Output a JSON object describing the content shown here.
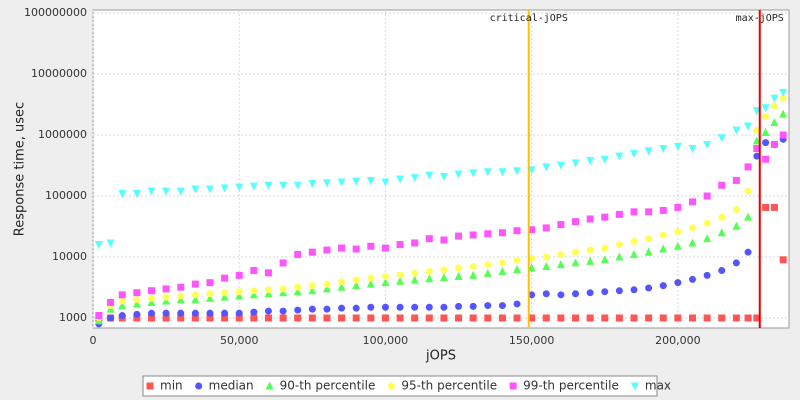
{
  "chart_data": {
    "type": "scatter",
    "log_y": true,
    "grid": true,
    "legend": "bottom",
    "xlabel": "jOPS",
    "ylabel": "Response time, usec",
    "xlim": [
      0,
      238000
    ],
    "ylim": [
      686,
      112000000
    ],
    "xticks": [
      0,
      {
        "value": 50000,
        "label": "50,000"
      },
      {
        "value": 100000,
        "label": "100,000"
      },
      {
        "value": 150000,
        "label": "150,000"
      },
      {
        "value": 200000,
        "label": "200,000"
      }
    ],
    "yticks": [
      1000,
      10000,
      100000,
      1000000,
      10000000,
      100000000
    ],
    "markers": [
      {
        "label": "critical-jOPS",
        "x": 149000,
        "color": "#ffc000"
      },
      {
        "label": "max-jOPS",
        "x": 228000,
        "color": "#e00000"
      }
    ],
    "x": [
      2000,
      6000,
      10000,
      15000,
      20000,
      25000,
      30000,
      35000,
      40000,
      45000,
      50000,
      55000,
      60000,
      65000,
      70000,
      75000,
      80000,
      85000,
      90000,
      95000,
      100000,
      105000,
      110000,
      115000,
      120000,
      125000,
      130000,
      135000,
      140000,
      145000,
      150000,
      155000,
      160000,
      165000,
      170000,
      175000,
      180000,
      185000,
      190000,
      195000,
      200000,
      205000,
      210000,
      215000,
      220000,
      224000,
      227000,
      230000,
      233000,
      236000
    ],
    "series": [
      {
        "name": "min",
        "color": "#ff5555",
        "marker": "square",
        "values": [
          1000,
          1000,
          1000,
          1000,
          1000,
          1000,
          1000,
          1000,
          1000,
          1000,
          1000,
          1000,
          1000,
          1000,
          1000,
          1000,
          1000,
          1000,
          1000,
          1000,
          1000,
          1000,
          1000,
          1000,
          1000,
          1000,
          1000,
          1000,
          1000,
          1000,
          1000,
          1000,
          1000,
          1000,
          1000,
          1000,
          1000,
          1000,
          1000,
          1000,
          1000,
          1000,
          1000,
          1000,
          1000,
          1000,
          1000,
          65000,
          65000,
          9000
        ]
      },
      {
        "name": "median",
        "color": "#5555ff",
        "marker": "circle",
        "values": [
          800,
          1000,
          1100,
          1150,
          1200,
          1200,
          1200,
          1200,
          1200,
          1200,
          1200,
          1250,
          1300,
          1300,
          1350,
          1400,
          1400,
          1450,
          1450,
          1500,
          1500,
          1500,
          1500,
          1500,
          1500,
          1550,
          1550,
          1600,
          1600,
          1700,
          2400,
          2500,
          2400,
          2500,
          2600,
          2700,
          2800,
          2900,
          3100,
          3400,
          3800,
          4300,
          5000,
          6000,
          8000,
          12000,
          450000,
          750000,
          700000,
          850000
        ]
      },
      {
        "name": "90-th percentile",
        "color": "#55ff55",
        "marker": "triangle-up",
        "values": [
          900,
          1400,
          1600,
          1700,
          1800,
          1900,
          2000,
          2000,
          2100,
          2200,
          2300,
          2400,
          2500,
          2600,
          2700,
          2800,
          3000,
          3200,
          3400,
          3600,
          3800,
          4000,
          4200,
          4400,
          4600,
          4800,
          5000,
          5400,
          5800,
          6200,
          6600,
          7000,
          7500,
          8000,
          8500,
          9000,
          10000,
          11000,
          12000,
          13500,
          15000,
          17000,
          20000,
          25000,
          32000,
          45000,
          800000,
          1100000,
          1600000,
          2200000
        ]
      },
      {
        "name": "95-th percentile",
        "color": "#ffff55",
        "marker": "circle",
        "values": [
          1000,
          1600,
          1900,
          2000,
          2100,
          2200,
          2300,
          2400,
          2500,
          2600,
          2700,
          2800,
          2900,
          3000,
          3200,
          3400,
          3600,
          3900,
          4200,
          4500,
          4800,
          5100,
          5400,
          5800,
          6200,
          6600,
          7000,
          7500,
          8000,
          8800,
          9500,
          10000,
          11000,
          12000,
          13000,
          14000,
          16000,
          18000,
          20000,
          23000,
          26000,
          30000,
          36000,
          45000,
          60000,
          120000,
          1200000,
          2000000,
          3000000,
          4000000
        ]
      },
      {
        "name": "99-th percentile",
        "color": "#ff55ff",
        "marker": "square",
        "values": [
          1100,
          1800,
          2400,
          2600,
          2800,
          3000,
          3200,
          3600,
          3800,
          4500,
          5000,
          6000,
          5500,
          8000,
          11000,
          12000,
          13000,
          14000,
          13500,
          15000,
          14000,
          16000,
          17000,
          20000,
          19000,
          22000,
          23000,
          24000,
          25000,
          27000,
          28000,
          30000,
          34000,
          38000,
          42000,
          45000,
          50000,
          55000,
          55000,
          58000,
          65000,
          80000,
          100000,
          150000,
          180000,
          300000,
          600000,
          400000,
          700000,
          1000000
        ]
      },
      {
        "name": "max",
        "color": "#55ffff",
        "marker": "triangle-down",
        "values": [
          16000,
          17000,
          110000,
          110000,
          120000,
          120000,
          120000,
          130000,
          130000,
          135000,
          140000,
          145000,
          150000,
          150000,
          150000,
          160000,
          165000,
          170000,
          175000,
          180000,
          170000,
          190000,
          200000,
          220000,
          210000,
          230000,
          240000,
          250000,
          250000,
          260000,
          270000,
          300000,
          320000,
          350000,
          380000,
          400000,
          450000,
          500000,
          550000,
          600000,
          650000,
          600000,
          700000,
          900000,
          1200000,
          1400000,
          2500000,
          2800000,
          4000000,
          5000000
        ]
      }
    ]
  }
}
